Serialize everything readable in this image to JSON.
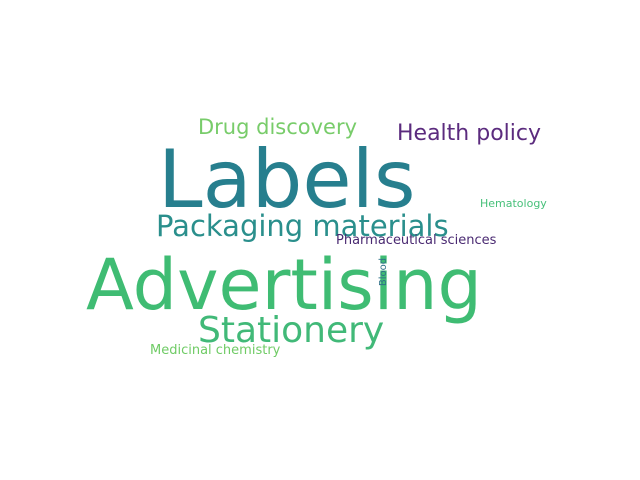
{
  "colors": {
    "background": "#ffffff",
    "teal": "#277f8e",
    "green": "#3fbc73",
    "light_green": "#78cc6a",
    "purple": "#5b2b7e",
    "dark_purple": "#4a2a72",
    "mint": "#47c07a"
  },
  "words": [
    {
      "id": "labels",
      "text": "Labels",
      "color": "#277f8e"
    },
    {
      "id": "advertising",
      "text": "Advertising",
      "color": "#3fbc73"
    },
    {
      "id": "packaging",
      "text": "Packaging materials",
      "color": "#2a8f8c"
    },
    {
      "id": "stationery",
      "text": "Stationery",
      "color": "#41b978"
    },
    {
      "id": "drug",
      "text": "Drug discovery",
      "color": "#78cc6a"
    },
    {
      "id": "health",
      "text": "Health policy",
      "color": "#5b2b7e"
    },
    {
      "id": "hematology",
      "text": "Hematology",
      "color": "#47c07a"
    },
    {
      "id": "pharma",
      "text": "Pharmaceutical sciences",
      "color": "#4a2a72"
    },
    {
      "id": "medicinal",
      "text": "Medicinal chemistry",
      "color": "#6fcb65"
    },
    {
      "id": "blood",
      "text": "Blood",
      "color": "#2f7189"
    }
  ]
}
